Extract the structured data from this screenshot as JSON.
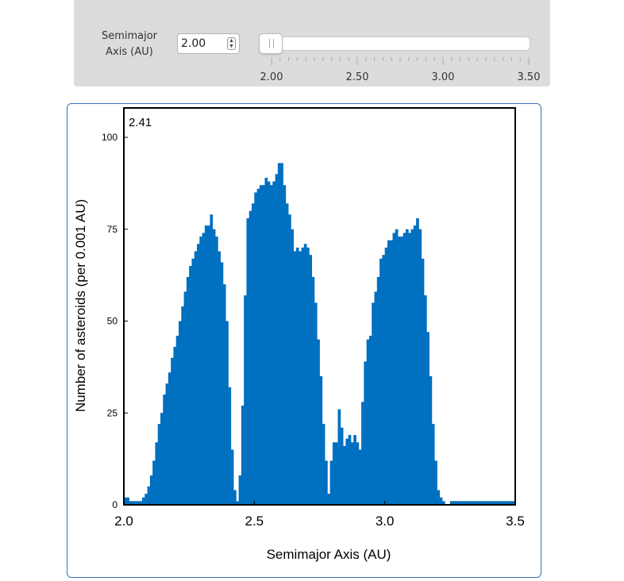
{
  "control": {
    "label_line1": "Semimajor",
    "label_line2": "Axis (AU)",
    "value": "2.00",
    "slider_min": 2.0,
    "slider_max": 3.5,
    "slider_value": 2.0,
    "slider_ticks": [
      "2.00",
      "2.50",
      "3.00",
      "3.50"
    ]
  },
  "chart_data": {
    "type": "bar",
    "title": "",
    "corner_label": "2.41",
    "xlabel": "Semimajor Axis (AU)",
    "ylabel": "Number of asteroids (per 0.001 AU)",
    "xlim": [
      2.0,
      3.5
    ],
    "ylim": [
      0,
      108
    ],
    "xticks": [
      "2.0",
      "2.5",
      "3.0",
      "3.5"
    ],
    "yticks": [
      "0",
      "25",
      "50",
      "75",
      "100"
    ],
    "bar_color": "#0070c0",
    "bin_width": 0.01,
    "x": [
      2.005,
      2.015,
      2.025,
      2.035,
      2.045,
      2.055,
      2.065,
      2.075,
      2.085,
      2.095,
      2.105,
      2.115,
      2.125,
      2.135,
      2.145,
      2.155,
      2.165,
      2.175,
      2.185,
      2.195,
      2.205,
      2.215,
      2.225,
      2.235,
      2.245,
      2.255,
      2.265,
      2.275,
      2.285,
      2.295,
      2.305,
      2.315,
      2.325,
      2.335,
      2.345,
      2.355,
      2.365,
      2.375,
      2.385,
      2.395,
      2.405,
      2.415,
      2.425,
      2.435,
      2.445,
      2.455,
      2.465,
      2.475,
      2.485,
      2.495,
      2.505,
      2.515,
      2.525,
      2.535,
      2.545,
      2.555,
      2.565,
      2.575,
      2.585,
      2.595,
      2.605,
      2.615,
      2.625,
      2.635,
      2.645,
      2.655,
      2.665,
      2.675,
      2.685,
      2.695,
      2.705,
      2.715,
      2.725,
      2.735,
      2.745,
      2.755,
      2.765,
      2.775,
      2.785,
      2.795,
      2.805,
      2.815,
      2.825,
      2.835,
      2.845,
      2.855,
      2.865,
      2.875,
      2.885,
      2.895,
      2.905,
      2.915,
      2.925,
      2.935,
      2.945,
      2.955,
      2.965,
      2.975,
      2.985,
      2.995,
      3.005,
      3.015,
      3.025,
      3.035,
      3.045,
      3.055,
      3.065,
      3.075,
      3.085,
      3.095,
      3.105,
      3.115,
      3.125,
      3.135,
      3.145,
      3.155,
      3.165,
      3.175,
      3.185,
      3.195,
      3.205,
      3.215,
      3.225,
      3.235,
      3.245,
      3.255,
      3.265,
      3.275,
      3.285,
      3.295,
      3.305,
      3.315,
      3.325,
      3.335,
      3.345,
      3.355,
      3.365,
      3.375,
      3.385,
      3.395,
      3.405,
      3.415,
      3.425,
      3.435,
      3.445,
      3.455,
      3.465,
      3.475,
      3.485,
      3.495
    ],
    "values": [
      2,
      2,
      1,
      1,
      1,
      1,
      1,
      2,
      3,
      5,
      8,
      12,
      17,
      22,
      25,
      30,
      33,
      36,
      40,
      43,
      46,
      50,
      54,
      58,
      62,
      65,
      67,
      69,
      71,
      73,
      74,
      76,
      76,
      79,
      75,
      73,
      69,
      66,
      60,
      50,
      32,
      15,
      4,
      1,
      8,
      27,
      57,
      78,
      80,
      82,
      85,
      86,
      87,
      87,
      89,
      88,
      87,
      88,
      90,
      93,
      93,
      87,
      82,
      79,
      75,
      69,
      70,
      69,
      70,
      71,
      70,
      68,
      62,
      55,
      45,
      35,
      22,
      12,
      3,
      12,
      17,
      17,
      26,
      21,
      16,
      18,
      19,
      17,
      19,
      17,
      15,
      28,
      39,
      45,
      46,
      55,
      58,
      62,
      67,
      68,
      70,
      72,
      72,
      74,
      75,
      73,
      73,
      74,
      75,
      74,
      75,
      76,
      78,
      75,
      67,
      57,
      47,
      35,
      22,
      12,
      4,
      2,
      1,
      0,
      0,
      1,
      1,
      1,
      1,
      1,
      1,
      1,
      1,
      1,
      1,
      1,
      1,
      1,
      1,
      1,
      1,
      1,
      1,
      1,
      1,
      1,
      1,
      1,
      1,
      1
    ]
  }
}
